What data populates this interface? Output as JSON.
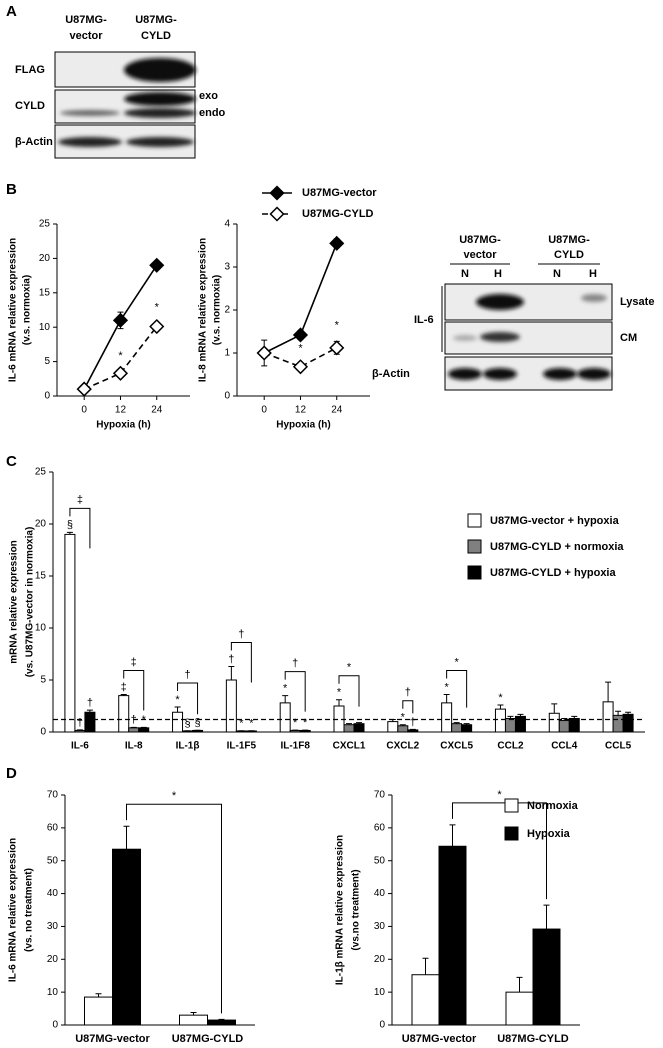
{
  "panel_labels": [
    "A",
    "B",
    "C",
    "D"
  ],
  "blot_a": {
    "columns": [
      [
        "U87MG-",
        "vector"
      ],
      [
        "U87MG-",
        "CYLD"
      ]
    ],
    "rows": [
      "FLAG",
      "CYLD",
      "β-Actin"
    ],
    "bands": [
      "exo",
      "endo"
    ]
  },
  "blot_b": {
    "columns": [
      [
        "U87MG-",
        "vector"
      ],
      [
        "U87MG-",
        "CYLD"
      ]
    ],
    "lanes": [
      "N",
      "H",
      "N",
      "H"
    ],
    "target": "IL-6",
    "fractions": [
      "Lysate",
      "CM"
    ],
    "control": "β-Actin"
  },
  "chart_data": [
    {
      "type": "line",
      "x": [
        0,
        12,
        24
      ],
      "xlim": [
        -9,
        35
      ],
      "xticks": [
        0,
        12,
        24
      ],
      "xlabel": "Hypoxia (h)",
      "ylabel": [
        "IL-6 mRNA relative expression",
        "(v.s. normoxia)"
      ],
      "ylim": [
        0,
        25
      ],
      "yticks": [
        0,
        5,
        10,
        15,
        20,
        25
      ],
      "series": [
        {
          "color": "#000000",
          "marker_fill": "#000000",
          "dashed": false,
          "values": [
            1,
            11,
            19
          ],
          "errors": [
            0.1,
            1.2,
            0.3
          ]
        },
        {
          "color": "#000000",
          "marker_fill": "#ffffff",
          "dashed": true,
          "values": [
            1,
            3.3,
            10.1
          ],
          "errors": [
            0.1,
            0.2,
            0.4
          ],
          "annotations": [
            null,
            "*",
            "*"
          ]
        }
      ]
    },
    {
      "type": "line",
      "x": [
        0,
        12,
        24
      ],
      "xlim": [
        -9,
        35
      ],
      "xticks": [
        0,
        12,
        24
      ],
      "xlabel": "Hypoxia (h)",
      "ylabel": [
        "IL-8 mRNA relative expression",
        "(v.s. normoxia)"
      ],
      "ylim": [
        0,
        4
      ],
      "yticks": [
        0,
        1,
        2,
        3,
        4
      ],
      "legend": "top",
      "series": [
        {
          "name": "U87MG-vector",
          "color": "#000000",
          "marker_fill": "#000000",
          "dashed": false,
          "values": [
            1,
            1.42,
            3.55
          ],
          "errors": [
            0.3,
            0.1,
            0.1
          ]
        },
        {
          "name": "U87MG-CYLD",
          "color": "#000000",
          "marker_fill": "#ffffff",
          "dashed": true,
          "values": [
            1,
            0.68,
            1.12
          ],
          "errors": [
            0.1,
            0.05,
            0.15
          ],
          "annotations": [
            null,
            "*",
            "*"
          ]
        }
      ]
    },
    {
      "type": "bar",
      "categories": [
        "IL-6",
        "IL-8",
        "IL-1β",
        "IL-1F5",
        "IL-1F8",
        "CXCL1",
        "CXCL2",
        "CXCL5",
        "CCL2",
        "CCL4",
        "CCL5"
      ],
      "ylabel": [
        "mRNA relative expression",
        "(vs. U87MG-vector in normoxia)"
      ],
      "ylim": [
        0,
        25
      ],
      "yticks": [
        0,
        5,
        10,
        15,
        20,
        25
      ],
      "reference_line": 1.2,
      "legend": "right",
      "series": [
        {
          "name": "U87MG-vector + hypoxia",
          "color": "#ffffff",
          "values": [
            19,
            3.5,
            1.9,
            5.0,
            2.8,
            2.5,
            1.0,
            2.8,
            2.2,
            1.8,
            2.9
          ],
          "errors": [
            0.2,
            0.1,
            0.5,
            1.3,
            0.7,
            0.6,
            0.2,
            0.8,
            0.4,
            0.9,
            1.9
          ],
          "annotations": [
            "§",
            "‡",
            "*",
            "†",
            "*",
            "*",
            null,
            "*",
            "*",
            null,
            null
          ],
          "brackets": [
            "‡",
            "‡",
            "†",
            "†",
            "†",
            "*",
            null,
            "*",
            null,
            null,
            null
          ]
        },
        {
          "name": "U87MG-CYLD + normoxia",
          "color": "#808080",
          "values": [
            0.15,
            0.4,
            0.1,
            0.1,
            0.15,
            0.7,
            0.6,
            0.8,
            1.3,
            1.1,
            1.6
          ],
          "errors": [
            0.05,
            0.05,
            0.02,
            0.02,
            0.03,
            0.1,
            0.1,
            0.1,
            0.2,
            0.2,
            0.4
          ],
          "annotations": [
            "†",
            "†",
            "§",
            "*",
            "*",
            null,
            "*",
            null,
            null,
            null,
            null
          ],
          "brackets": [
            null,
            null,
            null,
            null,
            null,
            null,
            "†",
            null,
            null,
            null,
            null
          ]
        },
        {
          "name": "U87MG-CYLD + hypoxia",
          "color": "#000000",
          "values": [
            1.9,
            0.4,
            0.15,
            0.1,
            0.15,
            0.8,
            0.2,
            0.7,
            1.5,
            1.3,
            1.7
          ],
          "errors": [
            0.2,
            0.05,
            0.02,
            0.02,
            0.03,
            0.1,
            0.05,
            0.1,
            0.2,
            0.2,
            0.2
          ],
          "annotations": [
            "†",
            "*",
            "§",
            "*",
            "*",
            null,
            "†",
            null,
            null,
            null,
            null
          ]
        }
      ]
    },
    {
      "type": "bar",
      "categories": [
        "U87MG-vector",
        "U87MG-CYLD"
      ],
      "ylabel": [
        "IL-6 mRNA relative expression",
        "(vs. no treatment)"
      ],
      "ylim": [
        0,
        70
      ],
      "yticks": [
        0,
        10,
        20,
        30,
        40,
        50,
        60,
        70
      ],
      "series": [
        {
          "color": "#ffffff",
          "values": [
            8.5,
            3
          ],
          "errors": [
            1,
            0.8
          ]
        },
        {
          "color": "#000000",
          "values": [
            53.5,
            1.5
          ],
          "errors": [
            7,
            0.2
          ],
          "cross_bracket": "*"
        }
      ]
    },
    {
      "type": "bar",
      "categories": [
        "U87MG-vector",
        "U87MG-CYLD"
      ],
      "ylabel": [
        "IL-1β mRNA relative expression",
        "(vs.no treatment)"
      ],
      "ylim": [
        0,
        70
      ],
      "yticks": [
        0,
        10,
        20,
        30,
        40,
        50,
        60,
        70
      ],
      "legend": "right",
      "series": [
        {
          "name": "Normoxia",
          "color": "#ffffff",
          "values": [
            15.3,
            10
          ],
          "errors": [
            5,
            4.5
          ]
        },
        {
          "name": "Hypoxia",
          "color": "#000000",
          "values": [
            54.4,
            29.2
          ],
          "errors": [
            6.5,
            7.3
          ],
          "cross_bracket": "*"
        }
      ]
    }
  ]
}
